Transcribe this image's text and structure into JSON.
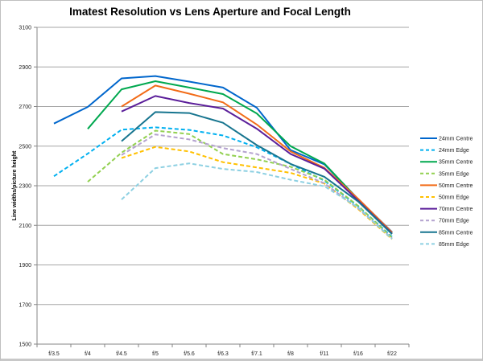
{
  "chart_data": {
    "type": "line",
    "title": "Imatest Resolution vs Lens Aperture and Focal Length",
    "xlabel": "",
    "ylabel": "Line widths/picture height",
    "categories": [
      "f/3.5",
      "f/4",
      "f/4.5",
      "f/5",
      "f/5.6",
      "f/6.3",
      "f/7.1",
      "f/8",
      "f/11",
      "f/16",
      "f/22"
    ],
    "ylim": [
      1500,
      3100
    ],
    "yticks": [
      1500,
      1700,
      1900,
      2100,
      2300,
      2500,
      2700,
      2900,
      3100
    ],
    "grid": true,
    "legend_position": "right",
    "series": [
      {
        "name": "24mm Centre",
        "color": "#0066cc",
        "dashed": false,
        "values": [
          2614,
          2698,
          2842,
          2854,
          2826,
          2796,
          2694,
          2480,
          2408,
          2232,
          2066
        ]
      },
      {
        "name": "24mm Edge",
        "color": "#00b0f0",
        "dashed": true,
        "values": [
          2348,
          2462,
          2583,
          2595,
          2582,
          2554,
          2494,
          2410,
          2325,
          2196,
          2042
        ]
      },
      {
        "name": "35mm Centre",
        "color": "#00a84f",
        "dashed": false,
        "values": [
          null,
          2587,
          2787,
          2828,
          2796,
          2763,
          2665,
          2500,
          2412,
          2230,
          2062
        ]
      },
      {
        "name": "35mm Edge",
        "color": "#92d050",
        "dashed": true,
        "values": [
          null,
          2320,
          2467,
          2578,
          2561,
          2460,
          2433,
          2396,
          2330,
          2198,
          2038
        ]
      },
      {
        "name": "50mm Centre",
        "color": "#f26c18",
        "dashed": false,
        "values": [
          null,
          null,
          2700,
          2806,
          2765,
          2721,
          2609,
          2473,
          2390,
          2234,
          2064
        ]
      },
      {
        "name": "50mm Edge",
        "color": "#ffc000",
        "dashed": true,
        "values": [
          null,
          null,
          2440,
          2496,
          2473,
          2419,
          2392,
          2365,
          2311,
          2182,
          2030
        ]
      },
      {
        "name": "70mm Centre",
        "color": "#5b1f9a",
        "dashed": false,
        "values": [
          null,
          null,
          2675,
          2753,
          2718,
          2690,
          2588,
          2460,
          2386,
          2224,
          2058
        ]
      },
      {
        "name": "70mm Edge",
        "color": "#b4a2cf",
        "dashed": true,
        "values": [
          null,
          null,
          2455,
          2559,
          2534,
          2490,
          2460,
          2385,
          2312,
          2186,
          2034
        ]
      },
      {
        "name": "85mm Centre",
        "color": "#17758f",
        "dashed": false,
        "values": [
          null,
          null,
          2525,
          2672,
          2667,
          2618,
          2505,
          2410,
          2345,
          2220,
          2056
        ]
      },
      {
        "name": "85mm Edge",
        "color": "#8dd0e2",
        "dashed": true,
        "values": [
          null,
          null,
          2230,
          2389,
          2413,
          2385,
          2369,
          2330,
          2297,
          2190,
          2031
        ]
      }
    ]
  }
}
